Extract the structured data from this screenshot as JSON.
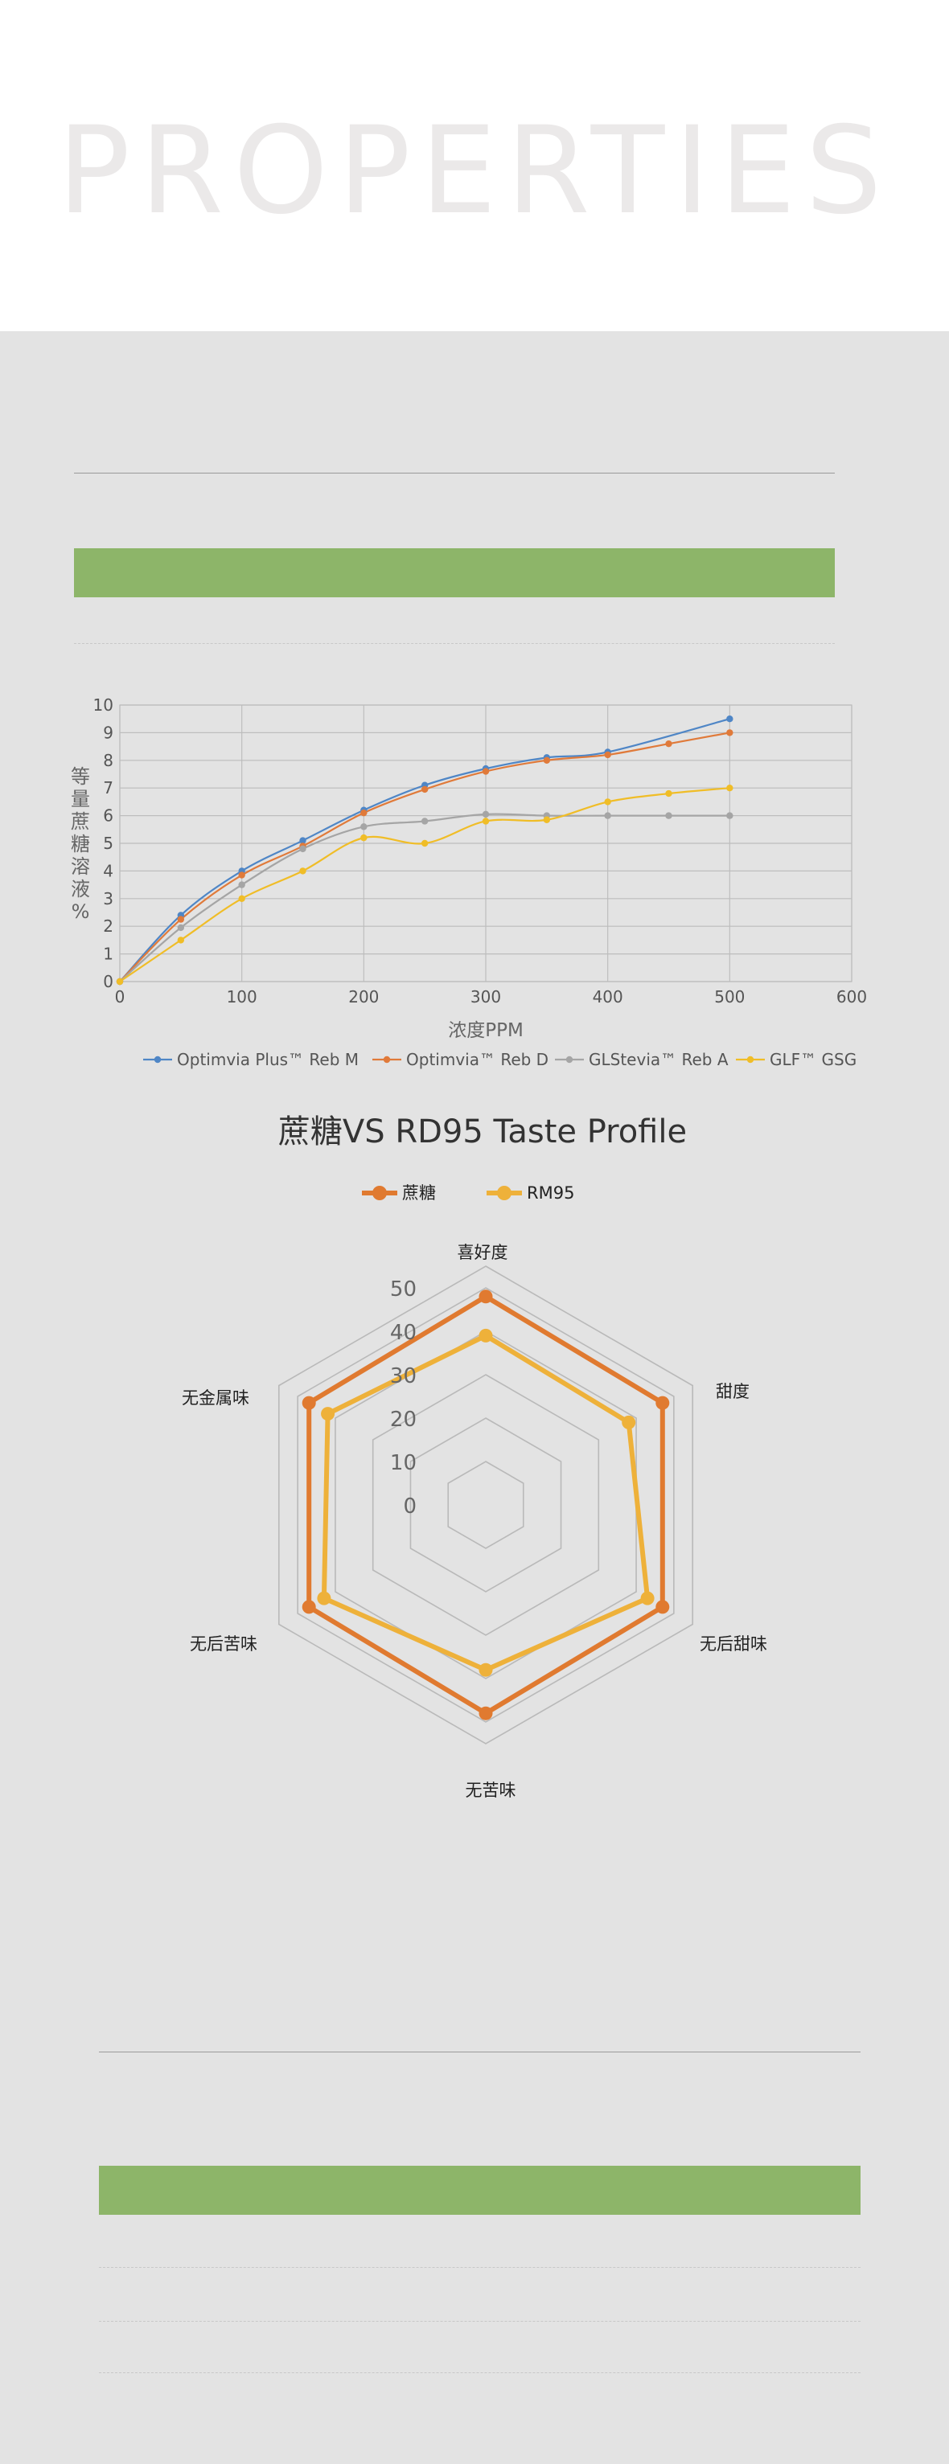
{
  "hero": {
    "title": "PROPERTIES"
  },
  "chart_data": [
    {
      "type": "line",
      "x": [
        0,
        50,
        100,
        150,
        200,
        250,
        300,
        350,
        400,
        450,
        500
      ],
      "series": [
        {
          "name": "Optimvia Plus™ Reb M",
          "color": "#4f86c6",
          "values": [
            0,
            2.4,
            4.0,
            5.1,
            6.2,
            7.1,
            7.7,
            8.1,
            8.3,
            null,
            9.5
          ]
        },
        {
          "name": "Optimvia™ Reb D",
          "color": "#e07a3a",
          "values": [
            0,
            2.25,
            3.85,
            4.9,
            6.1,
            6.95,
            7.6,
            8.0,
            8.2,
            8.6,
            9.0
          ]
        },
        {
          "name": "GLStevia™ Reb A",
          "color": "#a5a5a5",
          "values": [
            0,
            1.95,
            3.5,
            4.8,
            5.6,
            5.8,
            6.05,
            6.0,
            6.0,
            6.0,
            6.0
          ]
        },
        {
          "name": "GLF™ GSG",
          "color": "#f0bd27",
          "values": [
            0,
            1.5,
            3.0,
            4.0,
            5.2,
            5.0,
            5.8,
            5.85,
            6.5,
            6.8,
            7.0
          ]
        }
      ],
      "title": "",
      "xlabel": "浓度PPM",
      "ylabel": "等量蔗糖溶液%",
      "xlim": [
        0,
        600
      ],
      "ylim": [
        0,
        10
      ],
      "xticks": [
        0,
        100,
        200,
        300,
        400,
        500,
        600
      ],
      "yticks": [
        0,
        1,
        2,
        3,
        4,
        5,
        6,
        7,
        8,
        9,
        10
      ],
      "grid": true,
      "legend": "bottom"
    },
    {
      "type": "radar",
      "title": "蔗糖VS RD95 Taste Profile",
      "axes": [
        "喜好度",
        "甜度",
        "无后甜味",
        "无苦味",
        "无后苦味",
        "无金属味"
      ],
      "series": [
        {
          "name": "蔗糖",
          "color": "#e07a30",
          "values": [
            48,
            47,
            47,
            48,
            47,
            47
          ]
        },
        {
          "name": "RM95",
          "color": "#eeb13a",
          "values": [
            39,
            38,
            43,
            38,
            43,
            42
          ]
        }
      ],
      "rticks": [
        0,
        10,
        20,
        30,
        40,
        50
      ],
      "rmax": 55,
      "legend": "top"
    }
  ]
}
